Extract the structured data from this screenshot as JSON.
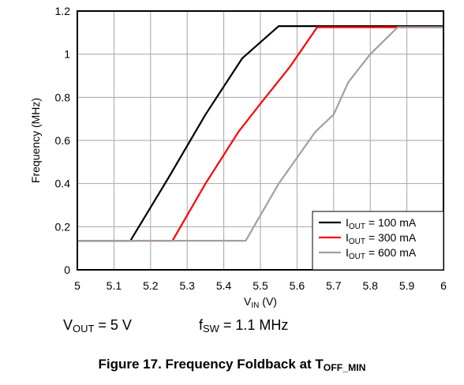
{
  "chart_data": {
    "type": "line",
    "title": "",
    "xlabel": {
      "main": "V",
      "sub": "IN",
      "unit": " (V)"
    },
    "ylabel": "Frequency (MHz)",
    "xlim": [
      5,
      6
    ],
    "ylim": [
      0,
      1.2
    ],
    "xticks": [
      "5",
      "5.1",
      "5.2",
      "5.3",
      "5.4",
      "5.5",
      "5.6",
      "5.7",
      "5.8",
      "5.9",
      "6"
    ],
    "yticks": [
      "0",
      "0.2",
      "0.4",
      "0.6",
      "0.8",
      "1",
      "1.2"
    ],
    "grid": true,
    "legend_position": "bottom-right",
    "series": [
      {
        "name": "I_OUT = 100 mA",
        "label_main": "I",
        "label_sub": "OUT",
        "label_rest": " = 100 mA",
        "color": "#000000",
        "x": [
          5.0,
          5.145,
          5.25,
          5.35,
          5.45,
          5.55,
          6.0
        ],
        "y": [
          0.135,
          0.135,
          0.43,
          0.72,
          0.98,
          1.13,
          1.13
        ]
      },
      {
        "name": "I_OUT = 300 mA",
        "label_main": "I",
        "label_sub": "OUT",
        "label_rest": " = 300 mA",
        "color": "#ff0000",
        "x": [
          5.0,
          5.26,
          5.35,
          5.44,
          5.5,
          5.58,
          5.655,
          6.0
        ],
        "y": [
          0.135,
          0.135,
          0.4,
          0.64,
          0.77,
          0.94,
          1.125,
          1.125
        ]
      },
      {
        "name": "I_OUT = 600 mA",
        "label_main": "I",
        "label_sub": "OUT",
        "label_rest": " = 600 mA",
        "color": "#a0a0a0",
        "x": [
          5.0,
          5.46,
          5.55,
          5.65,
          5.7,
          5.74,
          5.8,
          5.875,
          6.0
        ],
        "y": [
          0.135,
          0.135,
          0.4,
          0.64,
          0.72,
          0.87,
          1.0,
          1.125,
          1.125
        ]
      }
    ]
  },
  "notes": {
    "vout": {
      "main": "V",
      "sub": "OUT",
      "rest": " = 5 V"
    },
    "fsw": {
      "main": "f",
      "sub": "SW",
      "rest": " = 1.1 MHz"
    }
  },
  "caption": {
    "main": "Figure 17. Frequency Foldback at T",
    "sub": "OFF_MIN"
  }
}
